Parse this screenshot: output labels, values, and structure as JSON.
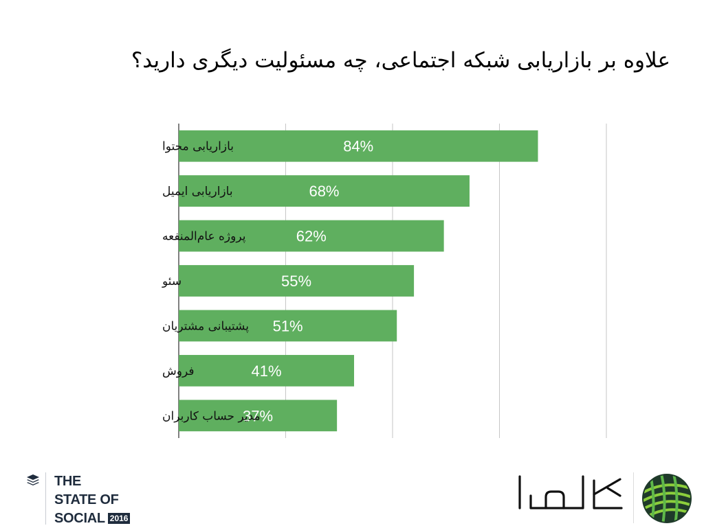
{
  "title": "علاوه بر بازاریابی شبکه اجتماعی، چه مسئولیت دیگری دارید؟",
  "colors": {
    "bar": "#5faf5f",
    "grid": "#c6c6c6",
    "axis": "#000000",
    "value_label": "#ffffff"
  },
  "chart_data": {
    "type": "bar",
    "orientation": "horizontal",
    "categories": [
      "بازاریابی محتوا",
      "بازاریابی ایمیل",
      "پروژه عام‌المنفعه",
      "سئو",
      "پشتیبانی مشتریان",
      "فروش",
      "مدیر حساب کاربران"
    ],
    "values": [
      84,
      68,
      62,
      55,
      51,
      41,
      37
    ],
    "value_labels": [
      "84%",
      "68%",
      "62%",
      "55%",
      "51%",
      "41%",
      "37%"
    ],
    "xlim": [
      0,
      100
    ],
    "grid": true,
    "legend": false
  },
  "footer": {
    "report": {
      "line1": "THE",
      "line2": "STATE OF",
      "line3": "SOCIAL",
      "year": "2016"
    },
    "brand_icon": "buffer-stack-icon",
    "logo_icon": "yarn-ball-icon"
  }
}
